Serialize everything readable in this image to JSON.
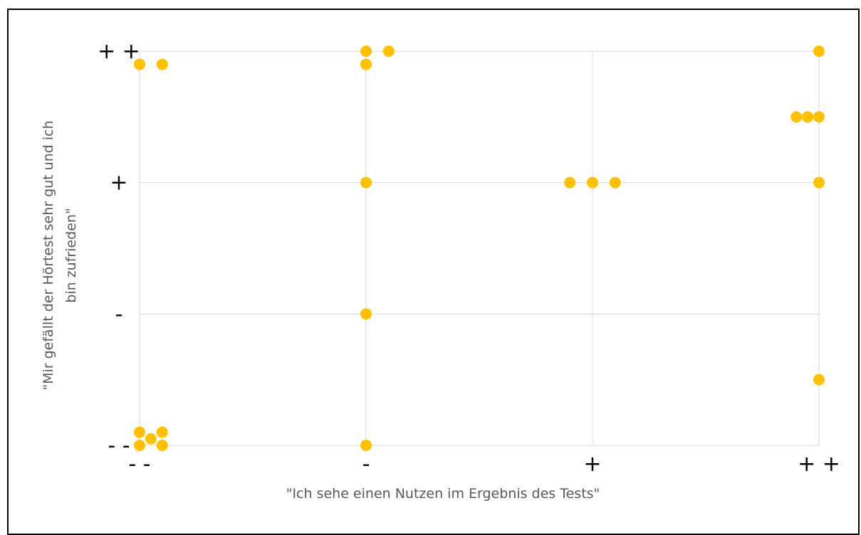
{
  "chart_data": {
    "type": "scatter",
    "xlabel": "\"Ich sehe einen Nutzen im Ergebnis des Tests\"",
    "ylabel": "\"Mir gefällt der Hörtest sehr gut und ich bin zufrieden\"",
    "ylabel_lines": [
      "\"Mir gefällt der Hörtest sehr gut und ich",
      "bin zufrieden\""
    ],
    "x_ticks": [
      "- -",
      "-",
      "+",
      "+ +"
    ],
    "y_ticks": [
      "- -",
      "-",
      "+",
      "+ +"
    ],
    "xlim": [
      1,
      4
    ],
    "ylim": [
      1,
      4
    ],
    "grid": true,
    "marker_color": "#FFC000",
    "points": [
      {
        "x": 1.0,
        "y": 3.9
      },
      {
        "x": 1.1,
        "y": 3.9
      },
      {
        "x": 2.0,
        "y": 4.0
      },
      {
        "x": 2.1,
        "y": 4.0
      },
      {
        "x": 2.0,
        "y": 3.9
      },
      {
        "x": 4.0,
        "y": 4.0
      },
      {
        "x": 3.9,
        "y": 3.5
      },
      {
        "x": 3.95,
        "y": 3.5
      },
      {
        "x": 4.0,
        "y": 3.5
      },
      {
        "x": 2.0,
        "y": 3.0
      },
      {
        "x": 2.9,
        "y": 3.0
      },
      {
        "x": 3.0,
        "y": 3.0
      },
      {
        "x": 3.1,
        "y": 3.0
      },
      {
        "x": 4.0,
        "y": 3.0
      },
      {
        "x": 2.0,
        "y": 2.0
      },
      {
        "x": 4.0,
        "y": 1.5
      },
      {
        "x": 1.0,
        "y": 1.1
      },
      {
        "x": 1.1,
        "y": 1.1
      },
      {
        "x": 1.05,
        "y": 1.05
      },
      {
        "x": 1.0,
        "y": 1.0
      },
      {
        "x": 1.1,
        "y": 1.0
      },
      {
        "x": 2.0,
        "y": 1.0
      }
    ]
  }
}
